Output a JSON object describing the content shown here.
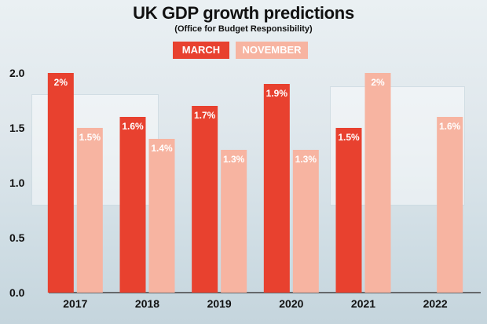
{
  "title": "UK GDP growth predictions",
  "subtitle": "(Office for Budget Responsibility)",
  "legend": [
    {
      "label": "MARCH",
      "color": "#e8412f"
    },
    {
      "label": "NOVEMBER",
      "color": "#f7b4a1"
    }
  ],
  "chart_data": {
    "type": "bar",
    "categories": [
      "2017",
      "2018",
      "2019",
      "2020",
      "2021",
      "2022"
    ],
    "series": [
      {
        "name": "MARCH",
        "color": "#e8412f",
        "values": [
          2.0,
          1.6,
          1.7,
          1.9,
          1.5,
          null
        ],
        "labels": [
          "2%",
          "1.6%",
          "1.7%",
          "1.9%",
          "1.5%",
          null
        ]
      },
      {
        "name": "NOVEMBER",
        "color": "#f7b4a1",
        "values": [
          1.5,
          1.4,
          1.3,
          1.3,
          2.0,
          1.6
        ],
        "labels": [
          "1.5%",
          "1.4%",
          "1.3%",
          "1.3%",
          "2%",
          "1.6%"
        ]
      }
    ],
    "yticks": [
      "0.0",
      "0.5",
      "1.0",
      "1.5",
      "2.0"
    ],
    "ylim": [
      0,
      2.0
    ],
    "grid": false,
    "legend_position": "top-center"
  }
}
